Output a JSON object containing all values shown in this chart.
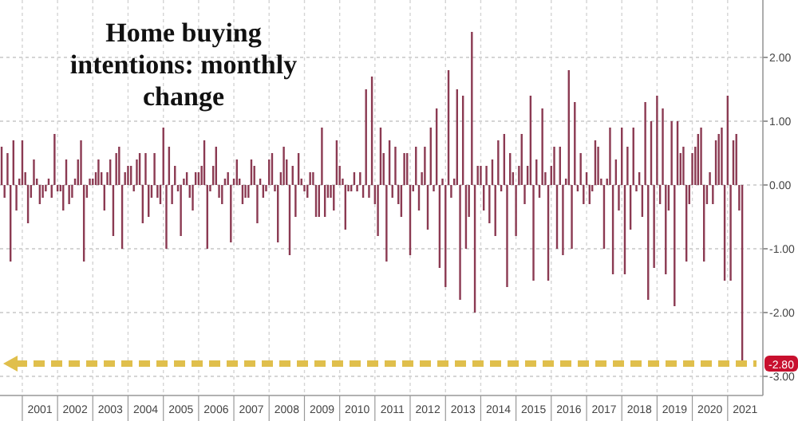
{
  "chart_data": {
    "type": "bar",
    "title": "Home buying intentions: monthly change",
    "x": [
      "2000-06",
      "2000-07",
      "2000-08",
      "2000-09",
      "2000-10",
      "2000-11",
      "2000-12",
      "2001-01",
      "2001-02",
      "2001-03",
      "2001-04",
      "2001-05",
      "2001-06",
      "2001-07",
      "2001-08",
      "2001-09",
      "2001-10",
      "2001-11",
      "2001-12",
      "2002-01",
      "2002-02",
      "2002-03",
      "2002-04",
      "2002-05",
      "2002-06",
      "2002-07",
      "2002-08",
      "2002-09",
      "2002-10",
      "2002-11",
      "2002-12",
      "2003-01",
      "2003-02",
      "2003-03",
      "2003-04",
      "2003-05",
      "2003-06",
      "2003-07",
      "2003-08",
      "2003-09",
      "2003-10",
      "2003-11",
      "2003-12",
      "2004-01",
      "2004-02",
      "2004-03",
      "2004-04",
      "2004-05",
      "2004-06",
      "2004-07",
      "2004-08",
      "2004-09",
      "2004-10",
      "2004-11",
      "2004-12",
      "2005-01",
      "2005-02",
      "2005-03",
      "2005-04",
      "2005-05",
      "2005-06",
      "2005-07",
      "2005-08",
      "2005-09",
      "2005-10",
      "2005-11",
      "2005-12",
      "2006-01",
      "2006-02",
      "2006-03",
      "2006-04",
      "2006-05",
      "2006-06",
      "2006-07",
      "2006-08",
      "2006-09",
      "2006-10",
      "2006-11",
      "2006-12",
      "2007-01",
      "2007-02",
      "2007-03",
      "2007-04",
      "2007-05",
      "2007-06",
      "2007-07",
      "2007-08",
      "2007-09",
      "2007-10",
      "2007-11",
      "2007-12",
      "2008-01",
      "2008-02",
      "2008-03",
      "2008-04",
      "2008-05",
      "2008-06",
      "2008-07",
      "2008-08",
      "2008-09",
      "2008-10",
      "2008-11",
      "2008-12",
      "2009-01",
      "2009-02",
      "2009-03",
      "2009-04",
      "2009-05",
      "2009-06",
      "2009-07",
      "2009-08",
      "2009-09",
      "2009-10",
      "2009-11",
      "2009-12",
      "2010-01",
      "2010-02",
      "2010-03",
      "2010-04",
      "2010-05",
      "2010-06",
      "2010-07",
      "2010-08",
      "2010-09",
      "2010-10",
      "2010-11",
      "2010-12",
      "2011-01",
      "2011-02",
      "2011-03",
      "2011-04",
      "2011-05",
      "2011-06",
      "2011-07",
      "2011-08",
      "2011-09",
      "2011-10",
      "2011-11",
      "2011-12",
      "2012-01",
      "2012-02",
      "2012-03",
      "2012-04",
      "2012-05",
      "2012-06",
      "2012-07",
      "2012-08",
      "2012-09",
      "2012-10",
      "2012-11",
      "2012-12",
      "2013-01",
      "2013-02",
      "2013-03",
      "2013-04",
      "2013-05",
      "2013-06",
      "2013-07",
      "2013-08",
      "2013-09",
      "2013-10",
      "2013-11",
      "2013-12",
      "2014-01",
      "2014-02",
      "2014-03",
      "2014-04",
      "2014-05",
      "2014-06",
      "2014-07",
      "2014-08",
      "2014-09",
      "2014-10",
      "2014-11",
      "2014-12",
      "2015-01",
      "2015-02",
      "2015-03",
      "2015-04",
      "2015-05",
      "2015-06",
      "2015-07",
      "2015-08",
      "2015-09",
      "2015-10",
      "2015-11",
      "2015-12",
      "2016-01",
      "2016-02",
      "2016-03",
      "2016-04",
      "2016-05",
      "2016-06",
      "2016-07",
      "2016-08",
      "2016-09",
      "2016-10",
      "2016-11",
      "2016-12",
      "2017-01",
      "2017-02",
      "2017-03",
      "2017-04",
      "2017-05",
      "2017-06",
      "2017-07",
      "2017-08",
      "2017-09",
      "2017-10",
      "2017-11",
      "2017-12",
      "2018-01",
      "2018-02",
      "2018-03",
      "2018-04",
      "2018-05",
      "2018-06",
      "2018-07",
      "2018-08",
      "2018-09",
      "2018-10",
      "2018-11",
      "2018-12",
      "2019-01",
      "2019-02",
      "2019-03",
      "2019-04",
      "2019-05",
      "2019-06",
      "2019-07",
      "2019-08",
      "2019-09",
      "2019-10",
      "2019-11",
      "2019-12",
      "2020-01",
      "2020-02",
      "2020-03",
      "2020-04",
      "2020-05",
      "2020-06",
      "2020-07",
      "2020-08",
      "2020-09",
      "2020-10",
      "2020-11",
      "2020-12",
      "2021-01",
      "2021-02",
      "2021-03",
      "2021-04",
      "2021-05",
      "2021-06"
    ],
    "series": [
      {
        "color": "#8b3a52",
        "values": [
          0.6,
          -0.2,
          0.5,
          -1.2,
          0.7,
          -0.4,
          0.1,
          0.7,
          0.2,
          -0.6,
          -0.2,
          0.4,
          0.1,
          -0.3,
          -0.2,
          -0.1,
          0.1,
          -0.2,
          0.8,
          -0.1,
          -0.1,
          -0.4,
          0.4,
          -0.3,
          -0.2,
          0.1,
          0.4,
          0.7,
          -1.2,
          -0.2,
          0.1,
          0.1,
          0.2,
          0.4,
          0.2,
          -0.4,
          0.2,
          0.4,
          -0.8,
          0.5,
          0.6,
          -1.0,
          0.2,
          0.3,
          0.3,
          -0.1,
          0.4,
          0.5,
          -0.6,
          0.5,
          -0.5,
          -0.2,
          0.5,
          -0.2,
          -0.3,
          0.9,
          -1.0,
          0.6,
          -0.3,
          0.3,
          -0.1,
          -0.8,
          0.1,
          0.2,
          -0.2,
          -0.4,
          0.2,
          0.2,
          0.3,
          0.7,
          -1.0,
          -0.1,
          0.3,
          0.6,
          -0.2,
          -0.3,
          0.1,
          0.2,
          -0.9,
          0.1,
          0.4,
          0.1,
          -0.3,
          -0.2,
          -0.2,
          0.4,
          0.3,
          -0.6,
          0.1,
          -0.2,
          -0.1,
          0.4,
          0.5,
          -0.1,
          -0.9,
          0.2,
          0.6,
          0.4,
          -1.1,
          0.3,
          -0.5,
          0.5,
          0.1,
          -0.1,
          -0.2,
          0.2,
          0.2,
          -0.5,
          -0.5,
          0.9,
          -0.5,
          -0.2,
          -0.2,
          -0.4,
          0.7,
          0.3,
          0.1,
          -0.7,
          -0.1,
          -0.1,
          0.2,
          -0.1,
          0.2,
          -0.2,
          1.5,
          -0.2,
          1.7,
          -0.3,
          -0.8,
          0.9,
          0.5,
          -1.2,
          0.7,
          -0.2,
          0.6,
          -0.3,
          -0.5,
          0.5,
          0.5,
          -1.1,
          -0.1,
          0.6,
          -0.4,
          0.2,
          0.6,
          -0.7,
          0.9,
          -0.1,
          1.2,
          -1.3,
          0.1,
          -1.6,
          1.8,
          -0.2,
          0.1,
          1.5,
          -1.8,
          1.4,
          -1.0,
          -0.5,
          2.4,
          -2.0,
          0.3,
          0.3,
          -0.4,
          0.3,
          -0.6,
          0.4,
          -0.8,
          0.7,
          -0.1,
          0.8,
          -1.6,
          0.5,
          0.2,
          -0.8,
          0.3,
          0.8,
          -0.3,
          0.3,
          1.4,
          -1.5,
          0.4,
          -0.2,
          1.2,
          0.2,
          -1.5,
          0.3,
          0.6,
          -1.0,
          0.6,
          -1.1,
          0.1,
          1.8,
          -1.0,
          1.3,
          -0.1,
          0.5,
          -0.3,
          0.2,
          -0.3,
          -0.1,
          0.7,
          0.6,
          0.1,
          -1.0,
          0.1,
          0.9,
          -1.4,
          0.4,
          -0.4,
          0.9,
          -1.4,
          0.6,
          -0.7,
          0.9,
          -0.1,
          0.2,
          -0.5,
          1.3,
          -1.8,
          1.0,
          -1.3,
          1.4,
          -0.3,
          1.2,
          -1.4,
          -0.4,
          1.0,
          -1.9,
          1.0,
          0.5,
          0.6,
          -1.2,
          -0.3,
          0.5,
          0.6,
          0.8,
          0.9,
          -1.2,
          -0.3,
          0.2,
          -0.3,
          0.7,
          0.8,
          0.9,
          -1.5,
          1.4,
          -1.5,
          0.7,
          0.8,
          -0.4,
          -2.8
        ]
      }
    ],
    "xlim": [
      "2000-05-15",
      "2022-01-01"
    ],
    "xticks": [
      {
        "value": "2001-01-01",
        "label": null
      },
      {
        "value": "2001-07-02",
        "label": "2001"
      },
      {
        "value": "2002-01-01",
        "label": null
      },
      {
        "value": "2002-07-02",
        "label": "2002"
      },
      {
        "value": "2003-01-01",
        "label": null
      },
      {
        "value": "2003-07-02",
        "label": "2003"
      },
      {
        "value": "2004-01-01",
        "label": null
      },
      {
        "value": "2004-07-02",
        "label": "2004"
      },
      {
        "value": "2005-01-01",
        "label": null
      },
      {
        "value": "2005-07-02",
        "label": "2005"
      },
      {
        "value": "2006-01-01",
        "label": null
      },
      {
        "value": "2006-07-02",
        "label": "2006"
      },
      {
        "value": "2007-01-01",
        "label": null
      },
      {
        "value": "2007-07-02",
        "label": "2007"
      },
      {
        "value": "2008-01-01",
        "label": null
      },
      {
        "value": "2008-07-02",
        "label": "2008"
      },
      {
        "value": "2009-01-01",
        "label": null
      },
      {
        "value": "2009-07-02",
        "label": "2009"
      },
      {
        "value": "2010-01-01",
        "label": null
      },
      {
        "value": "2010-07-02",
        "label": "2010"
      },
      {
        "value": "2011-01-01",
        "label": null
      },
      {
        "value": "2011-07-02",
        "label": "2011"
      },
      {
        "value": "2012-01-01",
        "label": null
      },
      {
        "value": "2012-07-02",
        "label": "2012"
      },
      {
        "value": "2013-01-01",
        "label": null
      },
      {
        "value": "2013-07-02",
        "label": "2013"
      },
      {
        "value": "2014-01-01",
        "label": null
      },
      {
        "value": "2014-07-02",
        "label": "2014"
      },
      {
        "value": "2015-01-01",
        "label": null
      },
      {
        "value": "2015-07-02",
        "label": "2015"
      },
      {
        "value": "2016-01-01",
        "label": null
      },
      {
        "value": "2016-07-02",
        "label": "2016"
      },
      {
        "value": "2017-01-01",
        "label": null
      },
      {
        "value": "2017-07-02",
        "label": "2017"
      },
      {
        "value": "2018-01-01",
        "label": null
      },
      {
        "value": "2018-07-02",
        "label": "2018"
      },
      {
        "value": "2019-01-01",
        "label": null
      },
      {
        "value": "2019-07-02",
        "label": "2019"
      },
      {
        "value": "2020-01-01",
        "label": null
      },
      {
        "value": "2020-07-02",
        "label": "2020"
      },
      {
        "value": "2021-01-01",
        "label": null
      },
      {
        "value": "2021-07-02",
        "label": "2021"
      }
    ],
    "ylim": [
      -3.3,
      2.9
    ],
    "yticks": [
      {
        "value": 2,
        "label": "2.00"
      },
      {
        "value": 1,
        "label": "1.00"
      },
      {
        "value": 0,
        "label": "0.00"
      },
      {
        "value": -1,
        "label": "-1.00"
      },
      {
        "value": -2,
        "label": "-2.00"
      },
      {
        "value": -3,
        "label": "-3.00"
      }
    ],
    "ref_lines": [
      {
        "axis": "y",
        "value": -2.8,
        "label": "-2.80",
        "color": "#e0bf4c",
        "line_style": "dashed"
      }
    ],
    "grid": true
  }
}
